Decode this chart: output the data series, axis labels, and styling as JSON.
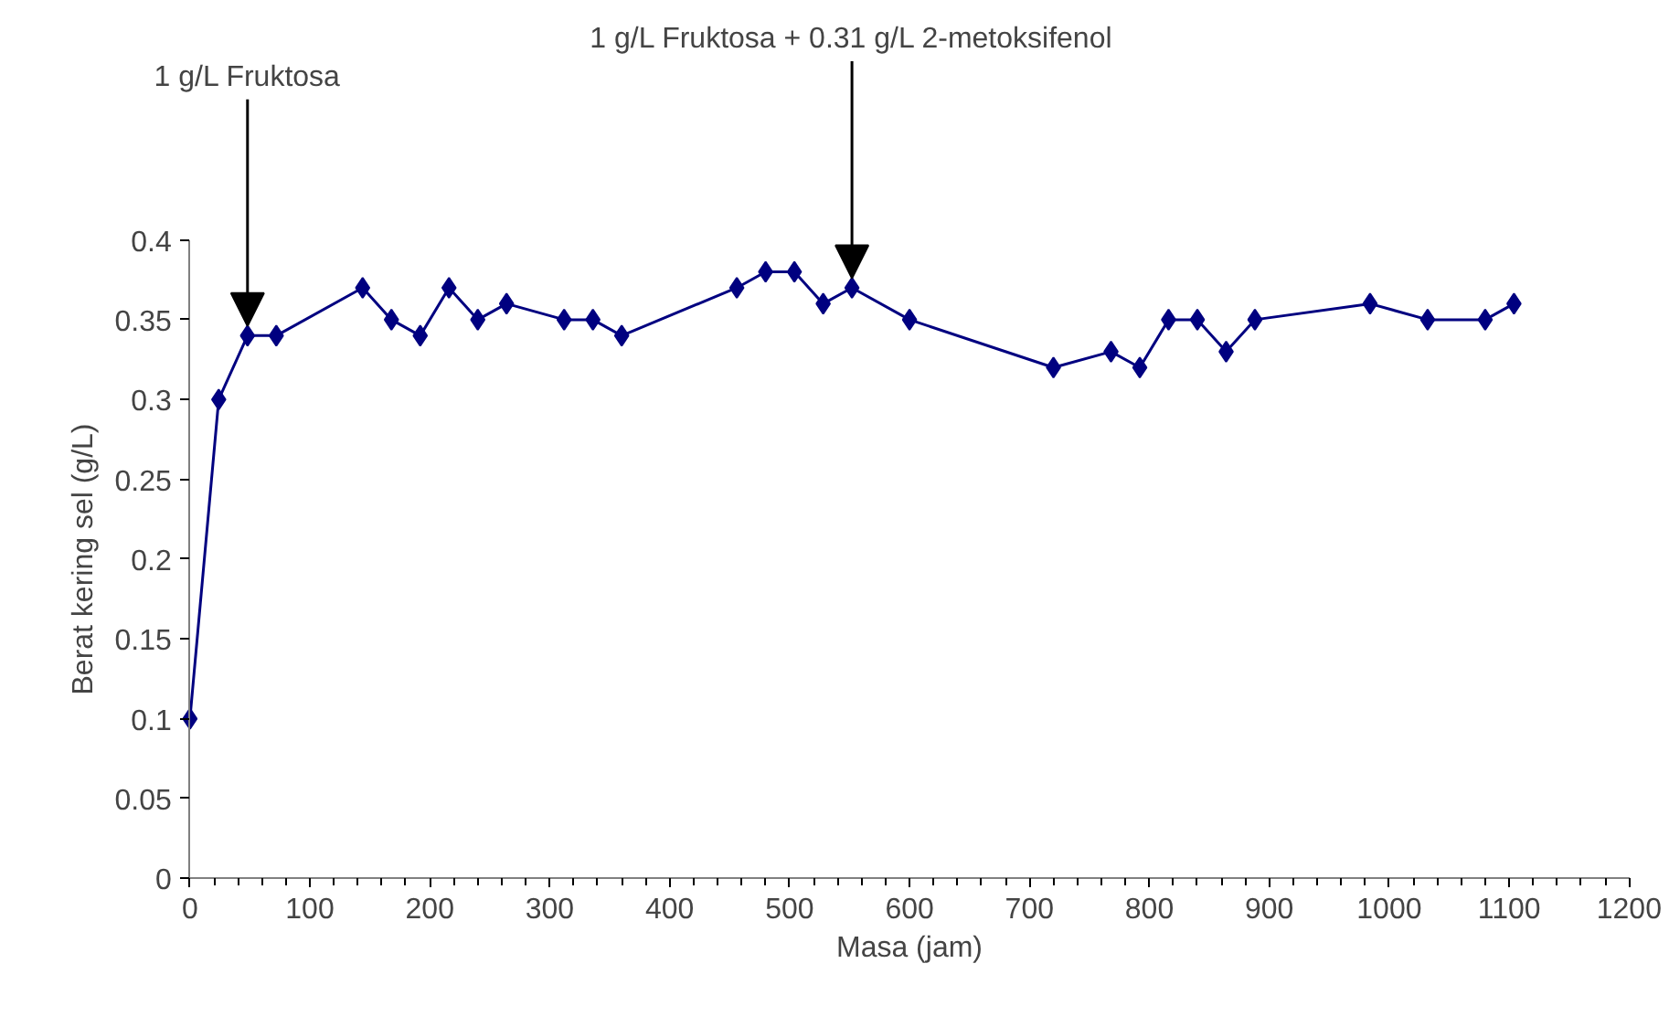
{
  "chart_data": {
    "type": "line",
    "xlabel": "Masa (jam)",
    "ylabel": "Berat kering sel (g/L)",
    "x": [
      0,
      24,
      48,
      72,
      144,
      168,
      192,
      216,
      240,
      264,
      312,
      336,
      360,
      456,
      480,
      504,
      528,
      552,
      600,
      720,
      768,
      792,
      816,
      840,
      864,
      888,
      984,
      1032,
      1080,
      1104
    ],
    "series": [
      {
        "color": "#000080",
        "values": [
          0.1,
          0.3,
          0.34,
          0.34,
          0.37,
          0.35,
          0.34,
          0.37,
          0.35,
          0.36,
          0.35,
          0.35,
          0.34,
          0.37,
          0.38,
          0.38,
          0.36,
          0.37,
          0.35,
          0.32,
          0.33,
          0.32,
          0.35,
          0.35,
          0.33,
          0.35,
          0.36,
          0.35,
          0.35,
          0.36
        ]
      }
    ],
    "xlim": [
      0,
      1200
    ],
    "xticks": [
      0,
      100,
      200,
      300,
      400,
      500,
      600,
      700,
      800,
      900,
      1000,
      1100,
      1200
    ],
    "ylim": [
      0,
      0.4
    ],
    "yticks": [
      0,
      0.05,
      0.1,
      0.15,
      0.2,
      0.25,
      0.3,
      0.35,
      0.4
    ],
    "marker": "diamond",
    "line_style": "solid",
    "grid": false,
    "annotations": [
      {
        "text": "1 g/L Fruktosa",
        "x": 48,
        "y": 0.34
      },
      {
        "text": "1 g/L Fruktosa + 0.31 g/L 2-metoksifenol",
        "x": 552,
        "y": 0.37
      }
    ]
  }
}
